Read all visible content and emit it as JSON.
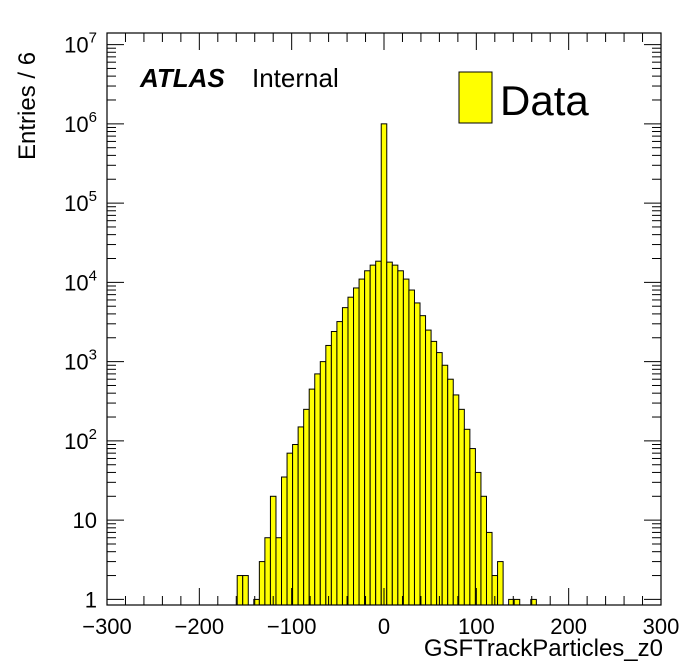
{
  "chart_data": {
    "type": "bar",
    "title": "",
    "xlabel": "GSFTrackParticles_z0",
    "ylabel": "Entries / 6",
    "xlim": [
      -300,
      300
    ],
    "ylim": [
      0.85,
      14000000
    ],
    "yscale": "log",
    "bin_width": 6,
    "grid": false,
    "legend_position": "top-right",
    "label_atlas": "ATLAS",
    "label_status": "Internal",
    "x_tick_labels": [
      "−300",
      "−200",
      "−100",
      "0",
      "100",
      "200",
      "300"
    ],
    "x_tick_values": [
      -300,
      -200,
      -100,
      0,
      100,
      200,
      300
    ],
    "y_tick_labels": [
      {
        "value": 1,
        "base": "1",
        "exp": ""
      },
      {
        "value": 10,
        "base": "10",
        "exp": ""
      },
      {
        "value": 100,
        "base": "10",
        "exp": "2"
      },
      {
        "value": 1000,
        "base": "10",
        "exp": "3"
      },
      {
        "value": 10000,
        "base": "10",
        "exp": "4"
      },
      {
        "value": 100000,
        "base": "10",
        "exp": "5"
      },
      {
        "value": 1000000,
        "base": "10",
        "exp": "6"
      },
      {
        "value": 10000000,
        "base": "10",
        "exp": "7"
      }
    ],
    "series": [
      {
        "name": "Data",
        "color": "#ffff00",
        "edge_color": "#000000",
        "bins": [
          {
            "x": -156,
            "y": 2
          },
          {
            "x": -150,
            "y": 2
          },
          {
            "x": -138,
            "y": 1
          },
          {
            "x": -132,
            "y": 3
          },
          {
            "x": -126,
            "y": 6
          },
          {
            "x": -120,
            "y": 20
          },
          {
            "x": -114,
            "y": 6
          },
          {
            "x": -108,
            "y": 35
          },
          {
            "x": -102,
            "y": 70
          },
          {
            "x": -96,
            "y": 90
          },
          {
            "x": -90,
            "y": 150
          },
          {
            "x": -84,
            "y": 250
          },
          {
            "x": -78,
            "y": 450
          },
          {
            "x": -72,
            "y": 700
          },
          {
            "x": -66,
            "y": 1000
          },
          {
            "x": -60,
            "y": 1600
          },
          {
            "x": -54,
            "y": 2400
          },
          {
            "x": -48,
            "y": 3200
          },
          {
            "x": -42,
            "y": 4800
          },
          {
            "x": -36,
            "y": 6500
          },
          {
            "x": -30,
            "y": 8500
          },
          {
            "x": -24,
            "y": 11000
          },
          {
            "x": -18,
            "y": 14000
          },
          {
            "x": -12,
            "y": 16500
          },
          {
            "x": -6,
            "y": 18500
          },
          {
            "x": 0,
            "y": 1000000
          },
          {
            "x": 6,
            "y": 18000
          },
          {
            "x": 12,
            "y": 16500
          },
          {
            "x": 18,
            "y": 14000
          },
          {
            "x": 24,
            "y": 11000
          },
          {
            "x": 30,
            "y": 8000
          },
          {
            "x": 36,
            "y": 5500
          },
          {
            "x": 42,
            "y": 3800
          },
          {
            "x": 48,
            "y": 2500
          },
          {
            "x": 54,
            "y": 1800
          },
          {
            "x": 60,
            "y": 1300
          },
          {
            "x": 66,
            "y": 900
          },
          {
            "x": 72,
            "y": 600
          },
          {
            "x": 78,
            "y": 380
          },
          {
            "x": 84,
            "y": 250
          },
          {
            "x": 90,
            "y": 140
          },
          {
            "x": 96,
            "y": 80
          },
          {
            "x": 102,
            "y": 40
          },
          {
            "x": 108,
            "y": 20
          },
          {
            "x": 114,
            "y": 7
          },
          {
            "x": 120,
            "y": 2
          },
          {
            "x": 126,
            "y": 3
          },
          {
            "x": 138,
            "y": 1
          },
          {
            "x": 144,
            "y": 1
          },
          {
            "x": 162,
            "y": 1
          }
        ]
      }
    ]
  }
}
